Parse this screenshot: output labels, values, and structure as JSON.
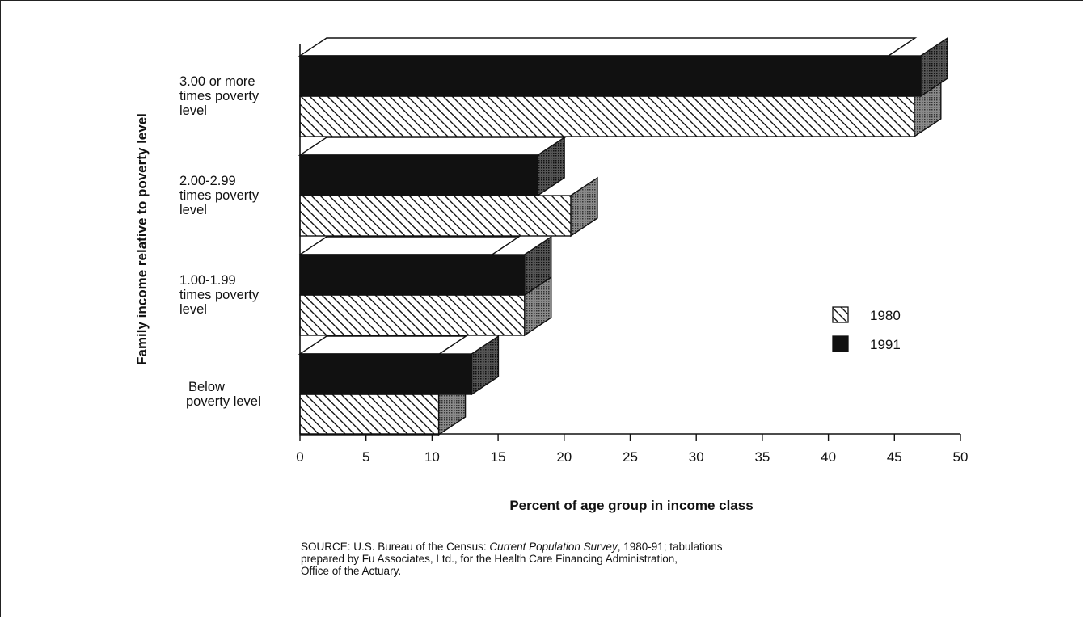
{
  "chart_data": {
    "type": "bar",
    "orientation": "horizontal",
    "style": "3d",
    "categories": [
      [
        "3.00 or more",
        "times poverty",
        "level"
      ],
      [
        "2.00-2.99",
        "times poverty",
        "level"
      ],
      [
        "1.00-1.99",
        "times poverty",
        "level"
      ],
      [
        "Below",
        "poverty level"
      ]
    ],
    "series": [
      {
        "name": "1991",
        "values": [
          47,
          18,
          17,
          13
        ],
        "color": "#111111",
        "pattern": "solid"
      },
      {
        "name": "1980",
        "values": [
          46.5,
          20.5,
          17,
          10.5
        ],
        "color": "#ffffff",
        "pattern": "diagonal-hatch"
      }
    ],
    "xlabel": "Percent of age group in income class",
    "ylabel": "Family income relative to poverty level",
    "xlim": [
      0,
      50
    ],
    "xticks": [
      0,
      5,
      10,
      15,
      20,
      25,
      30,
      35,
      40,
      45,
      50
    ],
    "grid": false,
    "legend": {
      "placement": "right",
      "entries": [
        {
          "label": "1980",
          "pattern": "diagonal-hatch"
        },
        {
          "label": "1991",
          "pattern": "solid"
        }
      ]
    }
  },
  "source": {
    "prefix": "SOURCE: U.S. Bureau of the Census: ",
    "title": "Current Population Survey",
    "suffix": ", 1980-91; tabulations",
    "line2": "prepared by Fu Associates, Ltd., for the Health Care Financing Administration,",
    "line3": "Office of the Actuary."
  }
}
